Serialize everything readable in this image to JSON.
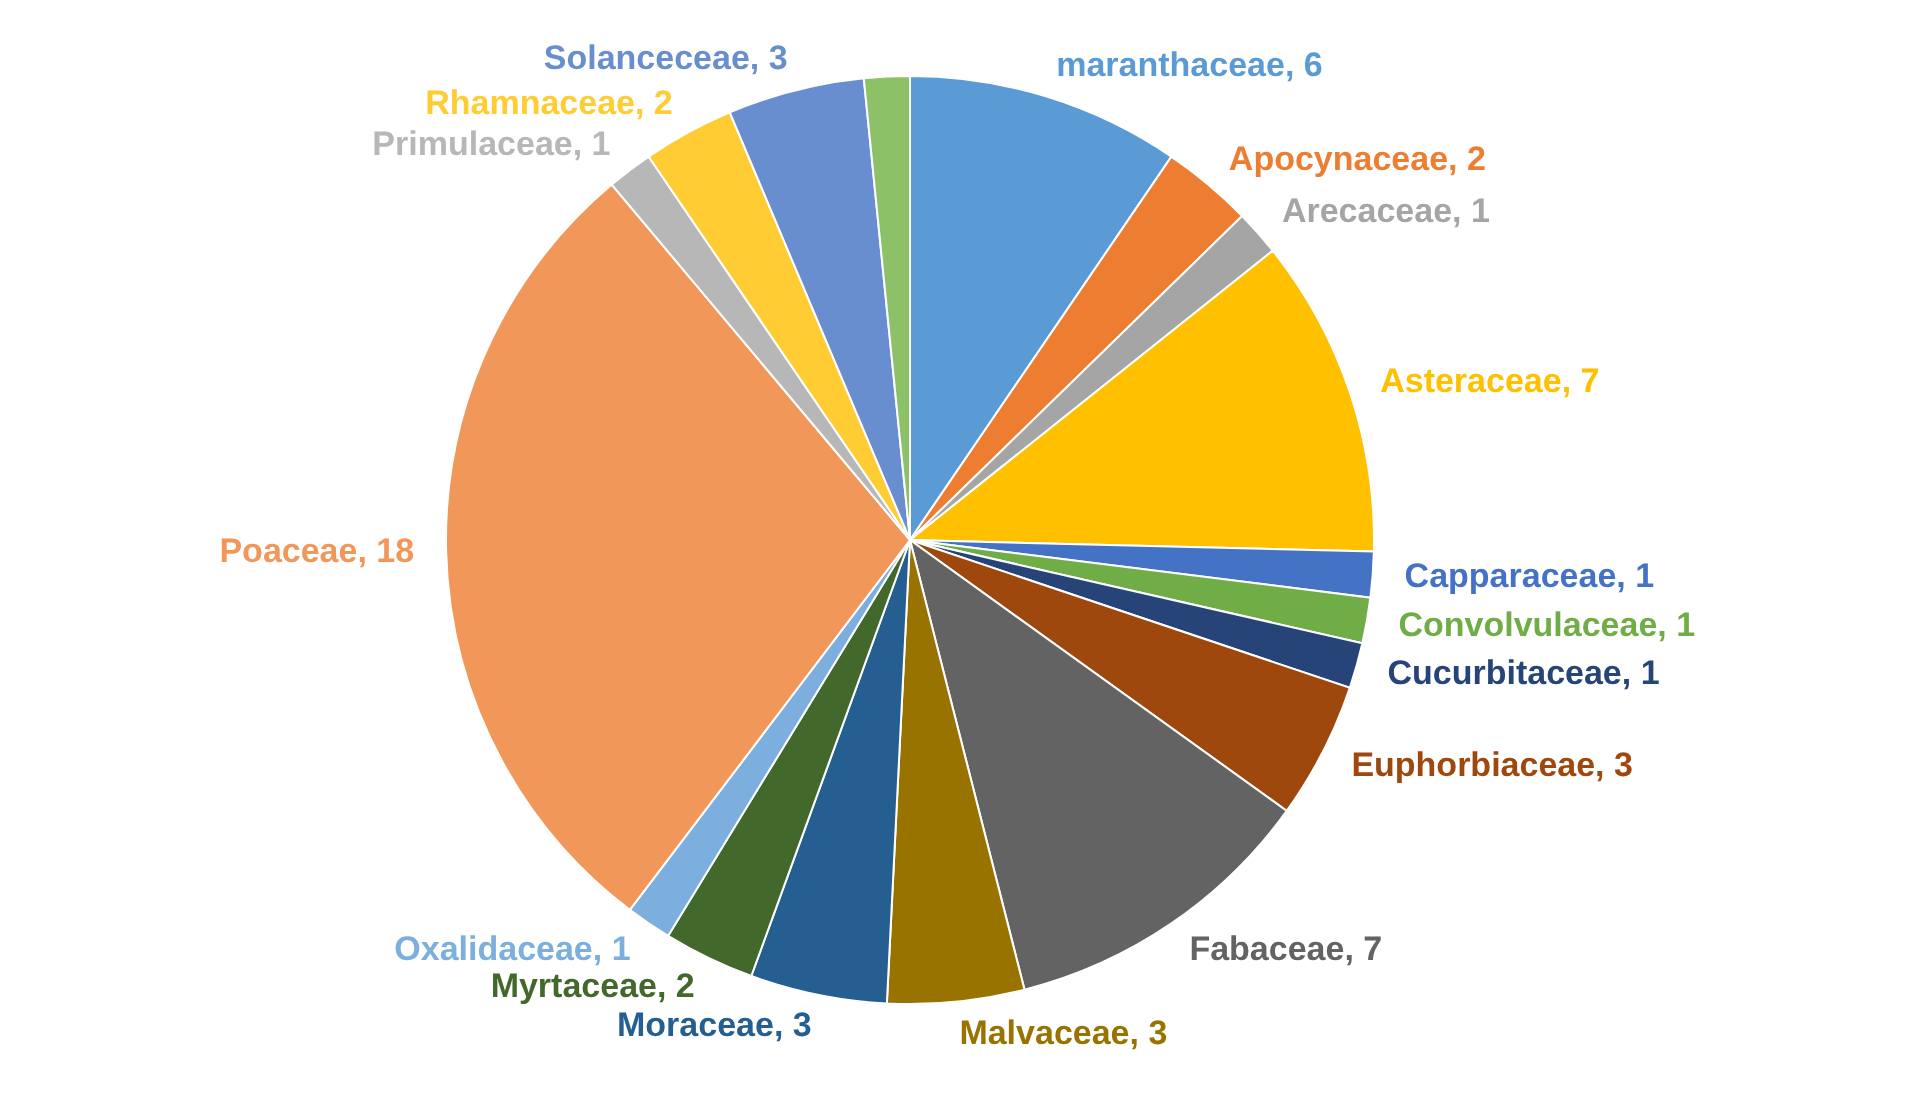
{
  "chart_data": {
    "type": "pie",
    "categories": [
      "maranthaceae, 6",
      "Apocynaceae, 2",
      "Arecaceae, 1",
      "Asteraceae, 7",
      "Capparaceae, 1",
      "Convolvulaceae, 1",
      "Cucurbitaceae, 1",
      "Euphorbiaceae, 3",
      "Fabaceae, 7",
      "Malvaceae, 3",
      "Moraceae, 3",
      "Myrtaceae, 2",
      "Oxalidaceae, 1",
      "Poaceae, 18",
      "Primulaceae, 1",
      "Rhamnaceae, 2",
      "Solanceceae, 3",
      null
    ],
    "values": [
      6,
      2,
      1,
      7,
      1,
      1,
      1,
      3,
      7,
      3,
      3,
      2,
      1,
      18,
      1,
      2,
      3,
      1
    ],
    "colors": [
      "#5b9bd5",
      "#ed7d31",
      "#a5a5a5",
      "#ffc000",
      "#4472c4",
      "#70ad47",
      "#264478",
      "#9e480e",
      "#636363",
      "#997300",
      "#255e91",
      "#43682b",
      "#7cafdd",
      "#f1975a",
      "#b7b7b7",
      "#ffcd33",
      "#698ed0",
      "#8cc168"
    ],
    "legend": false
  }
}
